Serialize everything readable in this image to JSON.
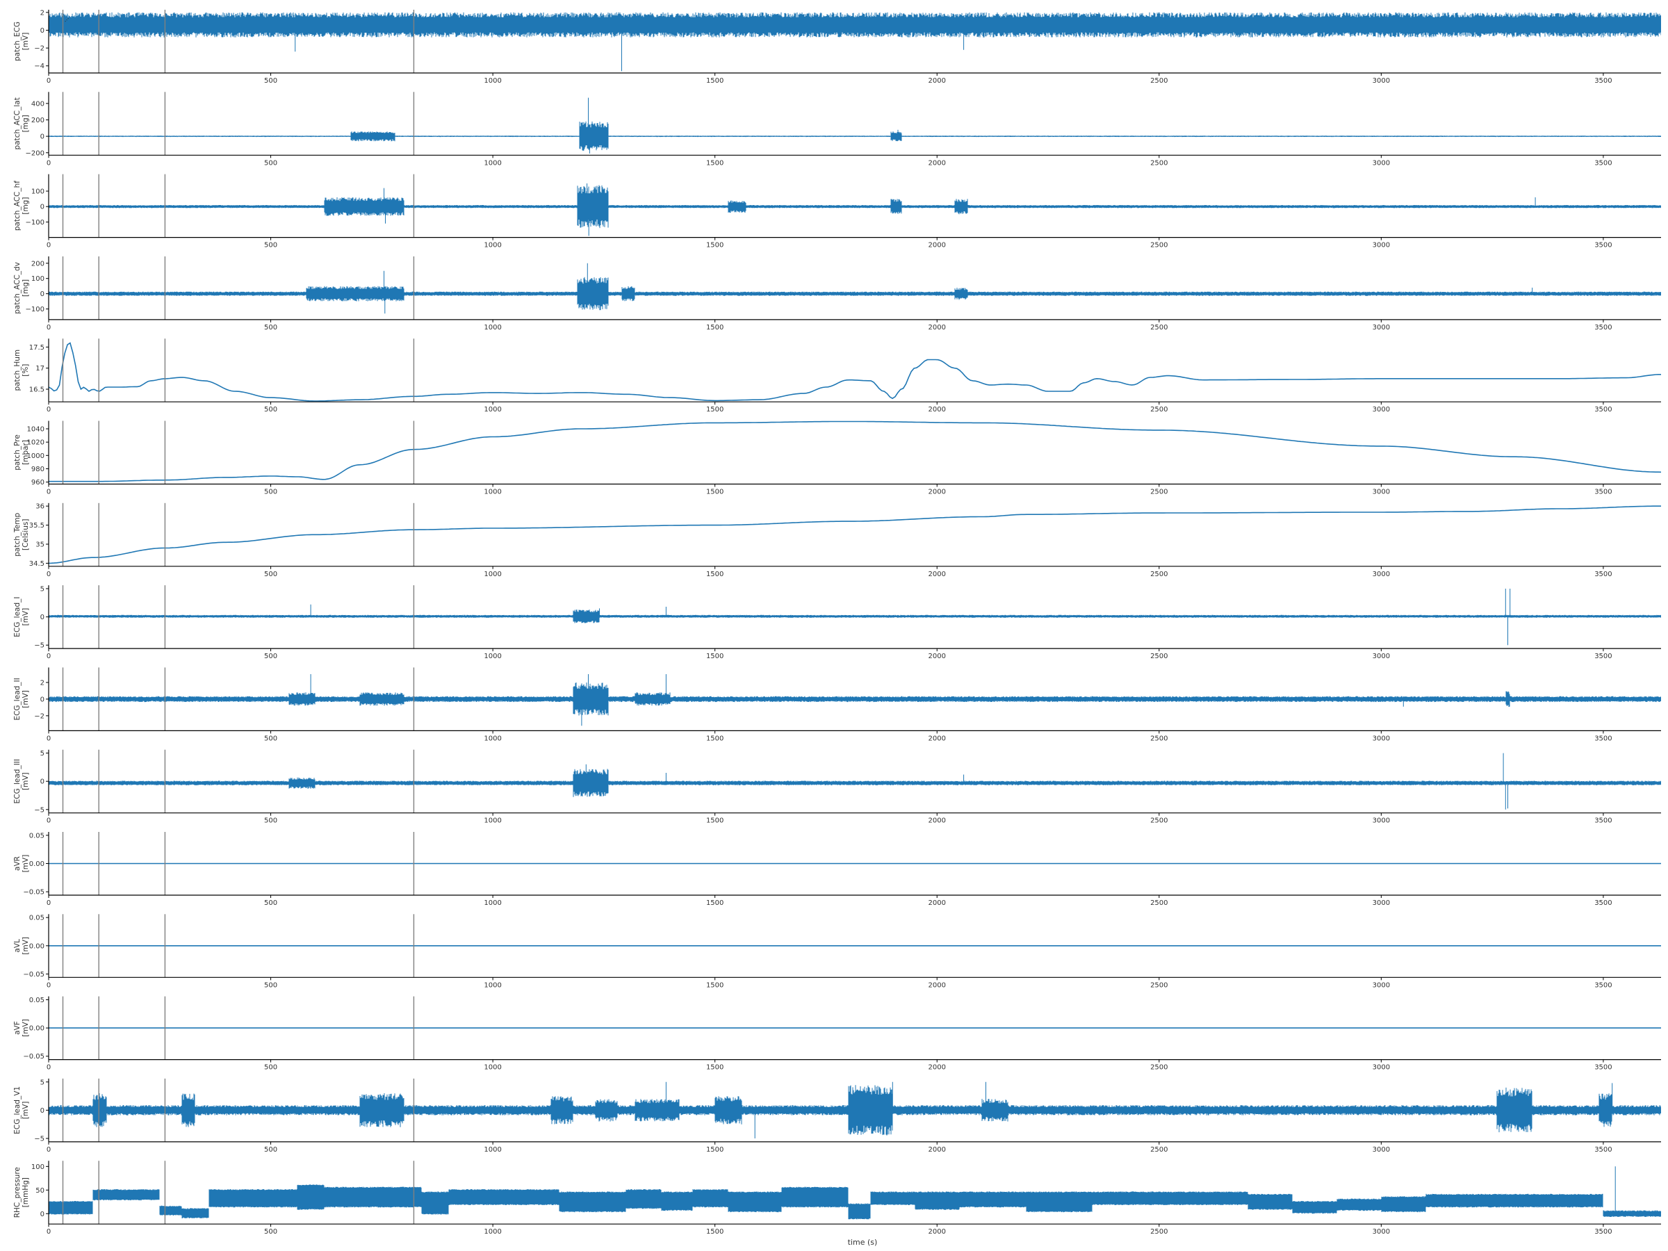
{
  "chart_data": {
    "type": "line",
    "xlabel": "time (s)",
    "xlim": [
      0,
      3630
    ],
    "xticks": [
      0,
      500,
      1000,
      1500,
      2000,
      2500,
      3000,
      3500
    ],
    "line_color": "#1f77b4",
    "event_lines": {
      "color": "#808080",
      "x": [
        32,
        113,
        262,
        822
      ],
      "labels": [
        "...",
        "",
        "",
        ""
      ]
    },
    "panels": [
      {
        "name": "patch_ECG",
        "ylabel": [
          "patch_ECG",
          "[mV]"
        ],
        "ylim": [
          -4.8,
          2.3
        ],
        "yticks": [
          -4,
          -2,
          0,
          2
        ],
        "kind": "noise",
        "baseline": 0.6,
        "amp": 1.4,
        "seed": 11,
        "spikes": [
          [
            555,
            -2.4
          ],
          [
            1290,
            -4.6
          ],
          [
            1283,
            2.0
          ],
          [
            2060,
            -2.2
          ]
        ]
      },
      {
        "name": "patch_ACC_lat",
        "ylabel": [
          "patch_ACC_lat",
          "[mg]"
        ],
        "ylim": [
          -230,
          540
        ],
        "yticks": [
          -200,
          0,
          200,
          400
        ],
        "kind": "noise",
        "baseline": 0,
        "amp": 8,
        "seed": 22,
        "bursts": [
          [
            680,
            780,
            60
          ],
          [
            1195,
            1260,
            180
          ],
          [
            1895,
            1920,
            60
          ]
        ],
        "spikes": [
          [
            1215,
            470
          ],
          [
            1218,
            -210
          ],
          [
            1912,
            80
          ]
        ]
      },
      {
        "name": "patch_ACC_hf",
        "ylabel": [
          "patch_ACC_hf",
          "[mg]"
        ],
        "ylim": [
          -200,
          210
        ],
        "yticks": [
          -100,
          0,
          100
        ],
        "kind": "noise",
        "baseline": 0,
        "amp": 10,
        "seed": 33,
        "bursts": [
          [
            620,
            800,
            60
          ],
          [
            1190,
            1260,
            140
          ],
          [
            1530,
            1570,
            40
          ],
          [
            1895,
            1920,
            50
          ],
          [
            2040,
            2070,
            50
          ]
        ],
        "spikes": [
          [
            755,
            120
          ],
          [
            758,
            -110
          ],
          [
            1212,
            150
          ],
          [
            1216,
            -190
          ],
          [
            3347,
            60
          ]
        ]
      },
      {
        "name": "patch_ACC_dv",
        "ylabel": [
          "patch_ACC_dv",
          "[mg]"
        ],
        "ylim": [
          -170,
          245
        ],
        "yticks": [
          -100,
          0,
          100,
          200
        ],
        "kind": "noise",
        "baseline": 0,
        "amp": 14,
        "seed": 44,
        "bursts": [
          [
            580,
            800,
            50
          ],
          [
            1190,
            1260,
            110
          ],
          [
            1290,
            1320,
            50
          ],
          [
            2040,
            2070,
            40
          ]
        ],
        "spikes": [
          [
            755,
            150
          ],
          [
            757,
            -130
          ],
          [
            1213,
            200
          ],
          [
            3340,
            40
          ]
        ]
      },
      {
        "name": "patch_Hum",
        "ylabel": [
          "patch_Hum",
          "[%]"
        ],
        "ylim": [
          16.2,
          17.7
        ],
        "yticks": [
          16.5,
          17.0,
          17.5
        ],
        "kind": "curve",
        "x": [
          0,
          15,
          25,
          32,
          40,
          50,
          58,
          65,
          72,
          80,
          90,
          100,
          113,
          130,
          160,
          200,
          230,
          262,
          300,
          350,
          420,
          500,
          600,
          700,
          822,
          900,
          1000,
          1100,
          1200,
          1300,
          1400,
          1500,
          1600,
          1700,
          1750,
          1800,
          1850,
          1880,
          1900,
          1920,
          1950,
          1980,
          2000,
          2040,
          2080,
          2120,
          2160,
          2200,
          2250,
          2300,
          2330,
          2360,
          2400,
          2440,
          2480,
          2520,
          2600,
          2800,
          3000,
          3200,
          3400,
          3550,
          3630
        ],
        "y": [
          16.55,
          16.45,
          16.6,
          17.1,
          17.55,
          17.6,
          17.2,
          16.7,
          16.5,
          16.55,
          16.45,
          16.5,
          16.45,
          16.55,
          16.55,
          16.56,
          16.7,
          16.75,
          16.78,
          16.7,
          16.45,
          16.3,
          16.22,
          16.25,
          16.33,
          16.38,
          16.42,
          16.4,
          16.42,
          16.38,
          16.3,
          16.23,
          16.25,
          16.4,
          16.55,
          16.72,
          16.7,
          16.45,
          16.28,
          16.5,
          17.0,
          17.2,
          17.2,
          17.0,
          16.7,
          16.6,
          16.62,
          16.6,
          16.45,
          16.45,
          16.65,
          16.75,
          16.68,
          16.6,
          16.78,
          16.82,
          16.72,
          16.73,
          16.75,
          16.75,
          16.75,
          16.77,
          16.85
        ]
      },
      {
        "name": "patch_Pre",
        "ylabel": [
          "patch_Pre",
          "[mbar]"
        ],
        "ylim": [
          957,
          1052
        ],
        "yticks": [
          960,
          980,
          1000,
          1020,
          1040
        ],
        "kind": "curve",
        "x": [
          0,
          113,
          262,
          400,
          500,
          560,
          620,
          700,
          822,
          1000,
          1200,
          1500,
          1800,
          2100,
          2500,
          3000,
          3300,
          3630
        ],
        "y": [
          961,
          961,
          963,
          967,
          969,
          968,
          964,
          986,
          1009,
          1028,
          1040,
          1049,
          1051,
          1049,
          1038,
          1014,
          998,
          975
        ]
      },
      {
        "name": "patch_Temp",
        "ylabel": [
          "patch_Temp",
          "[Celsius]"
        ],
        "ylim": [
          34.42,
          36.08
        ],
        "yticks": [
          34.5,
          35.0,
          35.5,
          36.0
        ],
        "kind": "curve",
        "x": [
          0,
          100,
          262,
          400,
          600,
          822,
          1000,
          1500,
          1800,
          2100,
          2200,
          2500,
          3000,
          3200,
          3400,
          3630
        ],
        "y": [
          34.5,
          34.65,
          34.9,
          35.05,
          35.25,
          35.38,
          35.42,
          35.5,
          35.6,
          35.72,
          35.78,
          35.82,
          35.84,
          35.86,
          35.93,
          36.0
        ]
      },
      {
        "name": "ECG_lead_I",
        "ylabel": [
          "ECG_lead_I",
          "[mV]"
        ],
        "ylim": [
          -5.6,
          5.6
        ],
        "yticks": [
          -5,
          0,
          5
        ],
        "kind": "noise",
        "baseline": 0.1,
        "amp": 0.25,
        "seed": 55,
        "bursts": [
          [
            1180,
            1240,
            1.2
          ]
        ],
        "spikes": [
          [
            590,
            2.2
          ],
          [
            1240,
            1.5
          ],
          [
            1390,
            1.8
          ],
          [
            3280,
            5.0
          ],
          [
            3285,
            -5.0
          ],
          [
            3290,
            5.0
          ]
        ]
      },
      {
        "name": "ECG_lead_II",
        "ylabel": [
          "ECG_lead_II",
          "[mV]"
        ],
        "ylim": [
          -3.8,
          3.8
        ],
        "yticks": [
          -2,
          0,
          2
        ],
        "kind": "noise",
        "baseline": 0,
        "amp": 0.35,
        "seed": 66,
        "bursts": [
          [
            540,
            600,
            0.8
          ],
          [
            700,
            800,
            0.8
          ],
          [
            1180,
            1260,
            2.0
          ],
          [
            1320,
            1400,
            0.8
          ],
          [
            3280,
            3290,
            1.0
          ]
        ],
        "spikes": [
          [
            590,
            3.0
          ],
          [
            1200,
            -3.2
          ],
          [
            1215,
            3.0
          ],
          [
            1390,
            3.0
          ],
          [
            3050,
            -0.9
          ]
        ]
      },
      {
        "name": "ECG_lead_III",
        "ylabel": [
          "ECG_lead_III",
          "[mV]"
        ],
        "ylim": [
          -5.6,
          5.6
        ],
        "yticks": [
          -5,
          0,
          5
        ],
        "kind": "noise",
        "baseline": -0.3,
        "amp": 0.4,
        "seed": 77,
        "bursts": [
          [
            540,
            600,
            1.0
          ],
          [
            1180,
            1260,
            2.5
          ]
        ],
        "spikes": [
          [
            1210,
            3.0
          ],
          [
            1390,
            1.5
          ],
          [
            2060,
            1.2
          ],
          [
            3275,
            5.0
          ],
          [
            3280,
            -5.0
          ],
          [
            3285,
            -4.8
          ]
        ]
      },
      {
        "name": "aVR",
        "ylabel": [
          "aVR",
          "[mV]"
        ],
        "ylim": [
          -0.056,
          0.056
        ],
        "yticks": [
          -0.05,
          0.0,
          0.05
        ],
        "yfmt": 2,
        "kind": "flat",
        "value": 0
      },
      {
        "name": "aVL",
        "ylabel": [
          "aVL",
          "[mV]"
        ],
        "ylim": [
          -0.056,
          0.056
        ],
        "yticks": [
          -0.05,
          0.0,
          0.05
        ],
        "yfmt": 2,
        "kind": "flat",
        "value": 0
      },
      {
        "name": "aVF",
        "ylabel": [
          "aVF",
          "[mV]"
        ],
        "ylim": [
          -0.056,
          0.056
        ],
        "yticks": [
          -0.05,
          0.0,
          0.05
        ],
        "yfmt": 2,
        "kind": "flat",
        "value": 0
      },
      {
        "name": "ECG_lead_V1",
        "ylabel": [
          "ECG_lead_V1",
          "[mV]"
        ],
        "ylim": [
          -5.6,
          5.6
        ],
        "yticks": [
          -5,
          0,
          5
        ],
        "kind": "noise",
        "baseline": 0,
        "amp": 0.9,
        "seed": 88,
        "bursts": [
          [
            100,
            130,
            3.0
          ],
          [
            300,
            330,
            3.0
          ],
          [
            700,
            800,
            3.0
          ],
          [
            1130,
            1180,
            2.5
          ],
          [
            1230,
            1280,
            2.0
          ],
          [
            1320,
            1420,
            2.0
          ],
          [
            1500,
            1560,
            2.5
          ],
          [
            1800,
            1900,
            4.5
          ],
          [
            2100,
            2160,
            2.0
          ],
          [
            3260,
            3340,
            4.0
          ],
          [
            3490,
            3520,
            3.0
          ]
        ],
        "spikes": [
          [
            1390,
            5.0
          ],
          [
            1590,
            -5.0
          ],
          [
            1900,
            5.0
          ],
          [
            2110,
            5.0
          ],
          [
            3520,
            4.8
          ]
        ]
      },
      {
        "name": "RHC_pressure",
        "ylabel": [
          "RHC_pressure",
          "[mmHg]"
        ],
        "ylim": [
          -22,
          112
        ],
        "yticks": [
          0,
          50,
          100
        ],
        "kind": "band",
        "seed": 99,
        "segments": [
          [
            0,
            100,
            0,
            25
          ],
          [
            100,
            200,
            30,
            50
          ],
          [
            200,
            250,
            30,
            50
          ],
          [
            250,
            300,
            -2,
            15
          ],
          [
            300,
            360,
            -8,
            10
          ],
          [
            360,
            560,
            15,
            50
          ],
          [
            560,
            620,
            10,
            60
          ],
          [
            620,
            840,
            15,
            55
          ],
          [
            840,
            900,
            0,
            45
          ],
          [
            900,
            1150,
            20,
            50
          ],
          [
            1150,
            1300,
            5,
            45
          ],
          [
            1300,
            1380,
            12,
            50
          ],
          [
            1380,
            1450,
            8,
            45
          ],
          [
            1450,
            1530,
            15,
            50
          ],
          [
            1530,
            1650,
            5,
            45
          ],
          [
            1650,
            1800,
            15,
            55
          ],
          [
            1800,
            1850,
            -10,
            20
          ],
          [
            1850,
            1950,
            20,
            45
          ],
          [
            1950,
            2050,
            10,
            45
          ],
          [
            2050,
            2200,
            15,
            45
          ],
          [
            2200,
            2350,
            5,
            45
          ],
          [
            2350,
            2700,
            20,
            45
          ],
          [
            2700,
            2800,
            10,
            40
          ],
          [
            2800,
            2900,
            2,
            25
          ],
          [
            2900,
            3000,
            8,
            30
          ],
          [
            3000,
            3100,
            5,
            35
          ],
          [
            3100,
            3200,
            15,
            40
          ],
          [
            3200,
            3500,
            15,
            40
          ],
          [
            3500,
            3630,
            -5,
            5
          ]
        ],
        "spikes": [
          [
            3527,
            100
          ]
        ]
      }
    ]
  }
}
